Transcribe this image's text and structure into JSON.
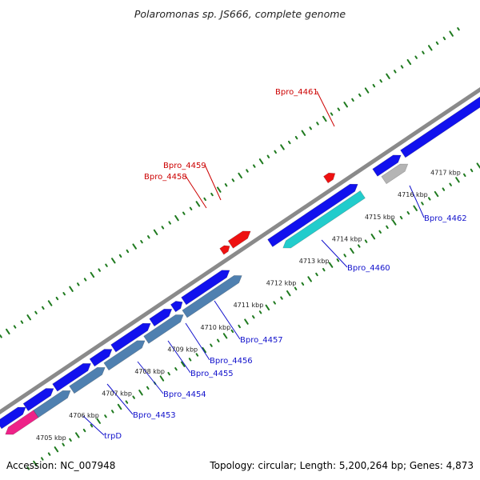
{
  "title": "Polaromonas sp. JS666, complete genome",
  "footer": {
    "accession": "Accession: NC_007948",
    "summary": "Topology: circular; Length: 5,200,264 bp; Genes: 4,873"
  },
  "colors": {
    "backbone": "#8a8a8a",
    "tick_dots": "#1f7a1f",
    "gene_blue": "#1111ee",
    "gene_steel": "#4f80b0",
    "gene_cyan": "#22cccc",
    "gene_gray": "#b4b4b4",
    "gene_pink": "#ee2288",
    "gene_red": "#ee1111",
    "label_blue": "#1111cc",
    "label_red": "#cc0000"
  },
  "ticks": [
    {
      "label": "4705 kbp"
    },
    {
      "label": "4706 kbp"
    },
    {
      "label": "4707 kbp"
    },
    {
      "label": "4708 kbp"
    },
    {
      "label": "4709 kbp"
    },
    {
      "label": "4710 kbp"
    },
    {
      "label": "4711 kbp"
    },
    {
      "label": "4712 kbp"
    },
    {
      "label": "4713 kbp"
    },
    {
      "label": "4714 kbp"
    },
    {
      "label": "4715 kbp"
    },
    {
      "label": "4716 kbp"
    },
    {
      "label": "4717 kbp"
    }
  ],
  "gene_labels": [
    {
      "text": "trpD",
      "color": "blue"
    },
    {
      "text": "Bpro_4453",
      "color": "blue"
    },
    {
      "text": "Bpro_4454",
      "color": "blue"
    },
    {
      "text": "Bpro_4455",
      "color": "blue"
    },
    {
      "text": "Bpro_4456",
      "color": "blue"
    },
    {
      "text": "Bpro_4457",
      "color": "blue"
    },
    {
      "text": "Bpro_4460",
      "color": "blue"
    },
    {
      "text": "Bpro_4462",
      "color": "blue"
    },
    {
      "text": "Bpro_4458",
      "color": "red"
    },
    {
      "text": "Bpro_4459",
      "color": "red"
    },
    {
      "text": "Bpro_4461",
      "color": "red"
    }
  ]
}
